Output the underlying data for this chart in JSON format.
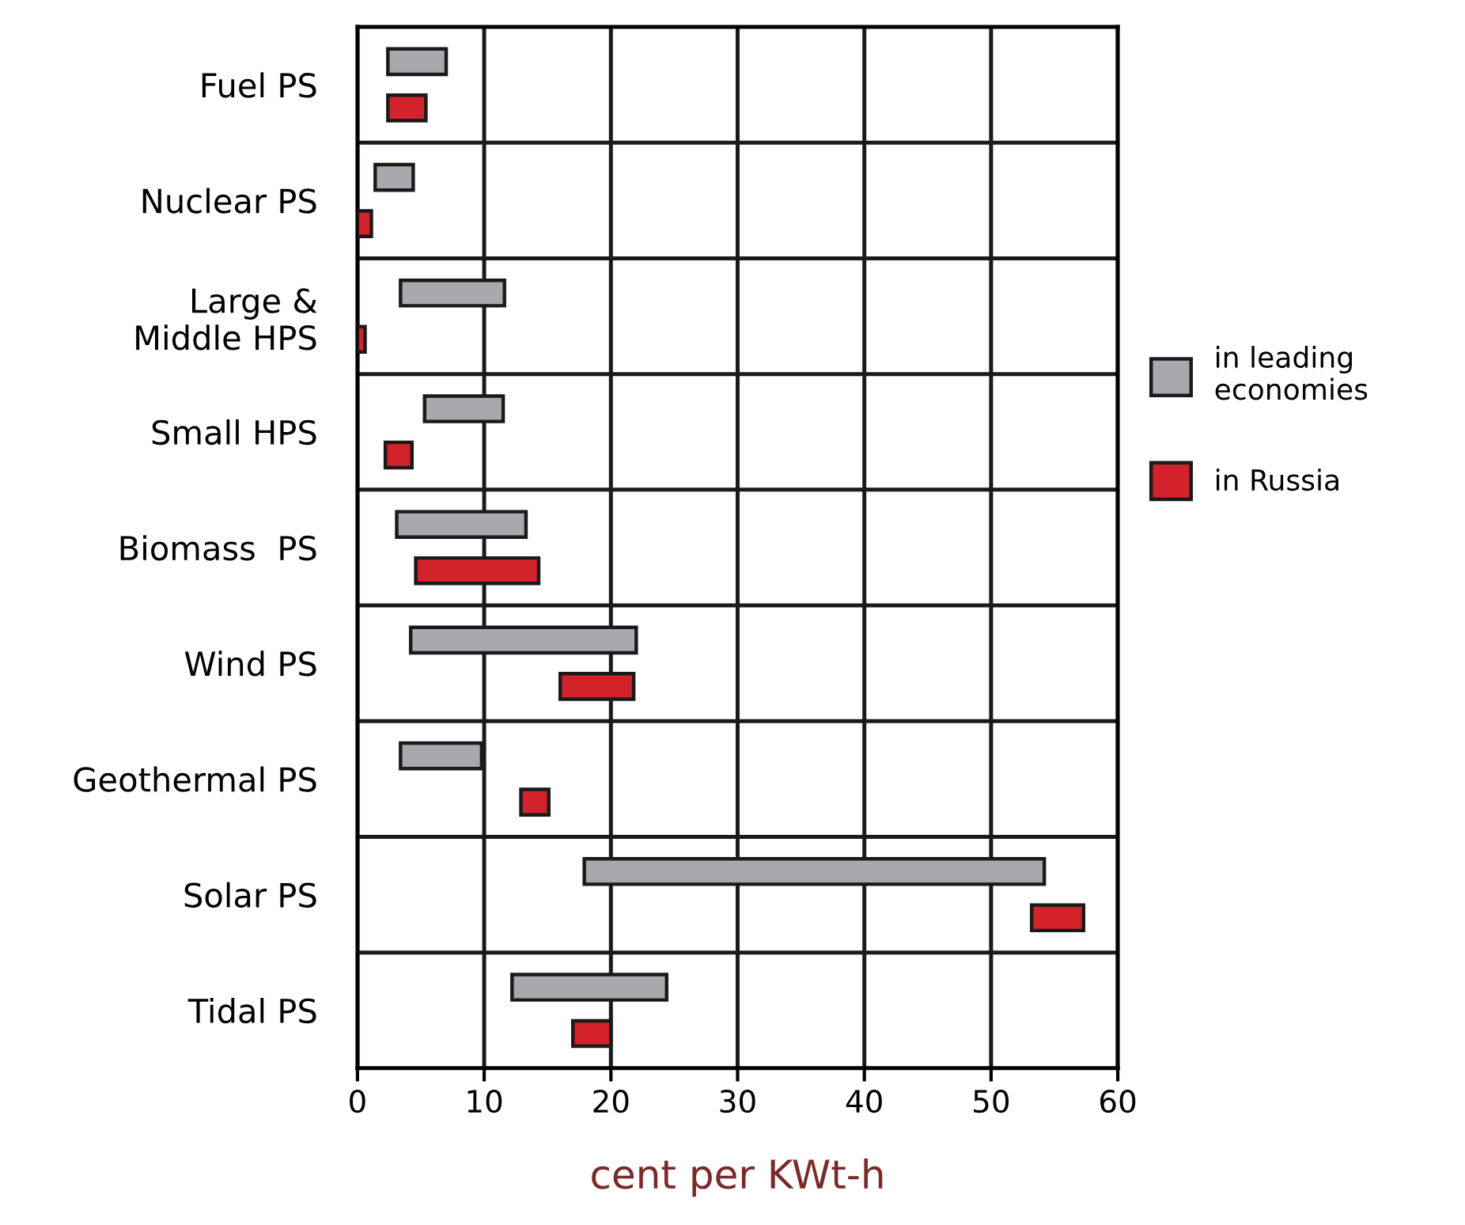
{
  "chart_data": {
    "type": "bar",
    "orientation": "horizontal",
    "xlabel": "cent per KWt-h",
    "categories": [
      "Fuel PS",
      "Nuclear PS",
      "Large &\nMiddle HPS",
      "Small HPS",
      "Biomass  PS",
      "Wind PS",
      "Geothermal PS",
      "Solar PS",
      "Tidal PS"
    ],
    "series": [
      {
        "name": "in leading\neconomies",
        "color": "#a7a9ac",
        "base": [
          2.4,
          1.4,
          3.4,
          5.3,
          3.1,
          4.2,
          3.4,
          17.9,
          12.2
        ],
        "values": [
          4.6,
          3.0,
          8.2,
          6.2,
          10.2,
          17.8,
          6.4,
          36.3,
          12.2
        ]
      },
      {
        "name": "in Russia",
        "color": "#d2232a",
        "base": [
          2.4,
          0,
          0,
          2.2,
          4.6,
          16.0,
          12.9,
          53.2,
          17.0
        ],
        "values": [
          3.0,
          1.1,
          0.6,
          2.1,
          9.7,
          5.8,
          2.2,
          4.1,
          3.0
        ]
      }
    ],
    "xlim": [
      0,
      60
    ],
    "xticks": [
      0,
      10,
      20,
      30,
      40,
      50,
      60
    ],
    "grid": "x",
    "legend": "right"
  }
}
